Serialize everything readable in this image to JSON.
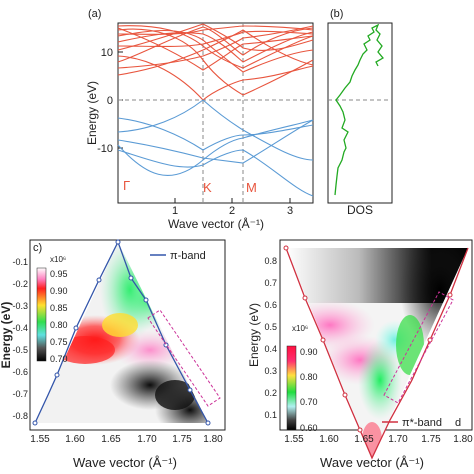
{
  "panel_a": {
    "label": "(a)",
    "y_axis_label": "Energy (eV)",
    "x_axis_label": "Wave vector (Å⁻¹)",
    "y_ticks": [
      "10",
      "0",
      "-10"
    ],
    "x_ticks": [
      "1",
      "2",
      "3"
    ],
    "symmetry_points": [
      "Γ",
      "K",
      "M"
    ],
    "conduction_color": "#e8553e",
    "valence_color": "#5b9bd5"
  },
  "panel_b": {
    "label": "(b)",
    "x_axis_label": "DOS",
    "line_color": "#22aa22"
  },
  "panel_c": {
    "label": "c)",
    "y_axis_label": "Energy (eV)",
    "x_axis_label": "Wave vector (Å⁻¹)",
    "y_ticks": [
      "-0.1",
      "-0.2",
      "-0.3",
      "-0.4",
      "-0.5",
      "-0.6",
      "-0.7",
      "-0.8"
    ],
    "x_ticks": [
      "1.60",
      "1.65",
      "1.70",
      "1.75",
      "1.80"
    ],
    "x_tick_partial": "1.55",
    "legend": "π-band",
    "colorbar_scale": "x10⁶",
    "colorbar_ticks": [
      "0.95",
      "0.90",
      "0.85",
      "0.80",
      "0.75",
      "0.70"
    ],
    "band_color": "#3355aa"
  },
  "panel_d": {
    "label": "d",
    "y_axis_label": "Energy (eV)",
    "x_axis_label": "Wave vector (Å⁻¹)",
    "y_ticks": [
      "0.8",
      "0.7",
      "0.6",
      "0.5",
      "0.4",
      "0.3",
      "0.2",
      "0.1"
    ],
    "x_ticks": [
      "1.55",
      "1.60",
      "1.65",
      "1.70",
      "1.75",
      "1.80"
    ],
    "legend": "π*-band",
    "colorbar_scale": "x10⁶",
    "colorbar_ticks": [
      "0.90",
      "0.80",
      "0.70",
      "0.60"
    ],
    "band_color": "#d03040"
  }
}
